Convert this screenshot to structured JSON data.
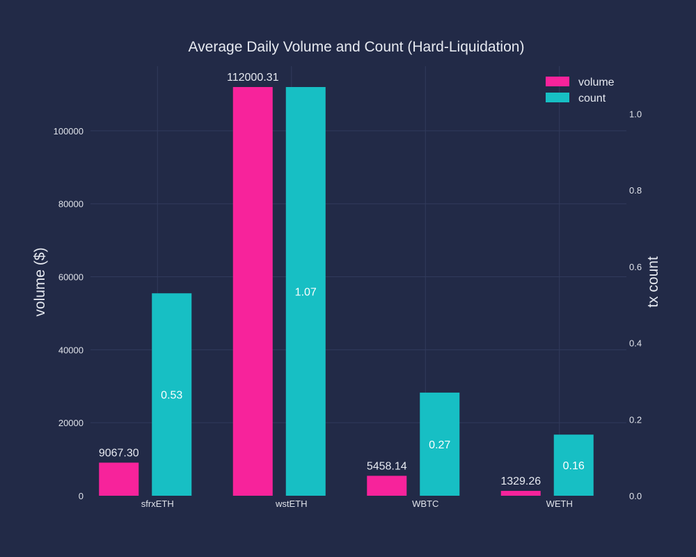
{
  "colors": {
    "background": "#222a47",
    "grid": "#313b5c",
    "volume": "#f7239b",
    "count": "#17bfc4",
    "text": "#e6e9f0"
  },
  "chart_data": {
    "type": "bar",
    "title": "Average Daily Volume and Count (Hard-Liquidation)",
    "categories": [
      "sfrxETH",
      "wstETH",
      "WBTC",
      "WETH"
    ],
    "series": [
      {
        "name": "volume",
        "axis": "left",
        "values": [
          9067.3,
          112000.31,
          5458.14,
          1329.26
        ],
        "labels": [
          "9067.30",
          "112000.31",
          "5458.14",
          "1329.26"
        ]
      },
      {
        "name": "count",
        "axis": "right",
        "values": [
          0.53,
          1.07,
          0.27,
          0.16
        ],
        "labels": [
          "0.53",
          "1.07",
          "0.27",
          "0.16"
        ]
      }
    ],
    "ylabel": "volume ($)",
    "y2label": "tx count",
    "ylim": [
      0,
      112000.31
    ],
    "y2lim": [
      0,
      1.07
    ],
    "yticks": [
      "0",
      "20000",
      "40000",
      "60000",
      "80000",
      "100000"
    ],
    "y2ticks": [
      "0.0",
      "0.2",
      "0.4",
      "0.6",
      "0.8",
      "1.0"
    ],
    "legend": "top-right",
    "grid": true
  }
}
